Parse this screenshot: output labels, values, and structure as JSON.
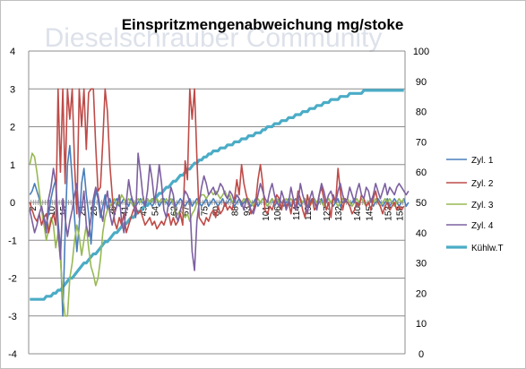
{
  "watermark": "Dieselschrauber Community",
  "chart_data": {
    "type": "line",
    "title": "Einspritzmengenabweichung mg/stoke",
    "y_left": {
      "min": -4,
      "max": 4,
      "step": 1,
      "ticks": [
        "4",
        "3",
        "2",
        "1",
        "0",
        "-1",
        "-2",
        "-3",
        "-4"
      ]
    },
    "y_right": {
      "min": 0,
      "max": 100,
      "step": 10,
      "ticks": [
        "100",
        "90",
        "80",
        "70",
        "60",
        "50",
        "40",
        "30",
        "20",
        "10",
        "0"
      ]
    },
    "x": {
      "count": 160,
      "tick_every": 6,
      "first_tick": 2,
      "ticks": [
        "2",
        "10",
        "15",
        "23",
        "28",
        "36",
        "41",
        "49",
        "54",
        "62",
        "67",
        "75",
        "80",
        "88",
        "93",
        "101",
        "106",
        "114",
        "119",
        "127",
        "132",
        "140",
        "145",
        "153",
        "158"
      ]
    },
    "legend_position": "right",
    "grid": "horizontal",
    "series": [
      {
        "name": "Zyl. 1",
        "color": "#4a7ebb",
        "axis": "left",
        "width": 1.6,
        "values": [
          0.2,
          0.3,
          0.5,
          0.3,
          0.1,
          -0.2,
          -0.4,
          -0.6,
          -0.3,
          0.1,
          0.4,
          0.6,
          -0.5,
          -1.2,
          -3.0,
          -0.8,
          1.0,
          1.5,
          0.6,
          -0.4,
          -1.3,
          -0.6,
          0.5,
          0.9,
          0.2,
          -0.3,
          -1.1,
          -0.2,
          0.3,
          0.1,
          -0.4,
          -0.1,
          0.2,
          -0.2,
          0.1,
          -0.1,
          0.0,
          0.1,
          -0.1,
          0.0,
          0.1,
          0.0,
          -0.1,
          0.1,
          0.0,
          -0.1,
          0.0,
          0.1,
          0.0,
          -0.1,
          0.1,
          0.0,
          -0.1,
          0.0,
          0.1,
          -0.1,
          0.0,
          0.1,
          0.0,
          -0.1,
          0.0,
          0.1,
          -0.1,
          0.0,
          0.1,
          0.0,
          -0.1,
          0.0,
          0.1,
          -0.1,
          0.0,
          0.1,
          0.0,
          -0.1,
          0.0,
          0.1,
          -0.1,
          0.0,
          0.1,
          0.0,
          -0.1,
          0.0,
          0.1,
          -0.1,
          0.0,
          0.1,
          0.0,
          -0.1,
          0.0,
          0.1,
          -0.1,
          0.0,
          0.1,
          0.0,
          -0.1,
          0.0,
          0.1,
          -0.1,
          0.0,
          0.1,
          0.0,
          -0.1,
          0.0,
          0.1,
          -0.1,
          0.0,
          0.1,
          0.0,
          -0.1,
          0.0,
          0.1,
          -0.1,
          0.0,
          0.1,
          0.0,
          -0.1,
          0.0,
          0.1,
          -0.1,
          0.0,
          0.1,
          0.0,
          -0.1,
          0.0,
          0.1,
          -0.1,
          0.0,
          0.1,
          0.0,
          -0.1,
          0.0,
          0.1,
          -0.1,
          0.0,
          0.1,
          0.0,
          -0.1,
          0.0,
          0.1,
          -0.1,
          0.0,
          0.1,
          0.0,
          -0.1,
          0.0,
          0.1,
          -0.1,
          0.0,
          0.1,
          0.0,
          -0.1,
          0.0,
          0.1,
          -0.1,
          0.0,
          0.1,
          0.0,
          -0.1,
          0.0,
          0.1,
          -0.1,
          0.0
        ]
      },
      {
        "name": "Zyl. 2",
        "color": "#be4b48",
        "axis": "left",
        "width": 1.6,
        "values": [
          0.0,
          -0.2,
          -0.4,
          -0.5,
          -0.3,
          -0.6,
          -0.4,
          -0.3,
          -0.8,
          -0.5,
          -0.3,
          -0.6,
          3.0,
          0.8,
          3.0,
          0.5,
          3.0,
          2.2,
          3.0,
          1.0,
          -0.3,
          3.0,
          2.0,
          3.0,
          1.4,
          2.9,
          3.0,
          3.0,
          1.5,
          0.3,
          0.4,
          1.6,
          3.0,
          2.4,
          1.0,
          0.2,
          -0.5,
          -0.7,
          -0.4,
          -0.6,
          -0.3,
          -0.8,
          -0.6,
          -0.4,
          -0.2,
          -0.1,
          -0.3,
          -0.2,
          -0.4,
          -0.6,
          -0.5,
          -0.4,
          -0.6,
          -0.5,
          -0.7,
          -0.6,
          -0.5,
          -0.6,
          -0.4,
          -0.3,
          -0.6,
          -0.4,
          -0.6,
          -0.5,
          -0.3,
          -0.6,
          1.1,
          0.6,
          3.0,
          2.2,
          3.0,
          1.2,
          -0.4,
          -0.5,
          -0.6,
          -0.4,
          -0.5,
          -0.3,
          -0.2,
          -0.4,
          -0.1,
          -0.3,
          -0.2,
          0.0,
          -0.2,
          -0.1,
          -0.2,
          0.1,
          0.6,
          0.2,
          1.0,
          0.5,
          0.2,
          0.0,
          -0.3,
          -0.2,
          0.0,
          0.6,
          1.0,
          0.5,
          -0.2,
          -0.3,
          -0.1,
          -0.2,
          0.0,
          0.2,
          0.1,
          -0.2,
          0.1,
          -0.1,
          0.0,
          -0.3,
          0.1,
          -0.2,
          0.3,
          0.1,
          -0.2,
          -0.4,
          0.2,
          -0.1,
          0.1,
          -0.2,
          -0.1,
          0.2,
          0.4,
          0.1,
          -0.2,
          0.0,
          -0.4,
          0.2,
          0.0,
          0.9,
          0.3,
          -0.2,
          0.1,
          0.0,
          -0.1,
          -0.3,
          -0.2,
          0.0,
          -0.1,
          0.2,
          0.1,
          -0.1,
          0.0,
          -0.2,
          0.1,
          0.3,
          0.0,
          -0.1,
          -0.3,
          -0.1,
          0.0,
          -0.2,
          -0.1,
          0.0,
          -0.2,
          -0.1,
          -0.2,
          -0.1
        ]
      },
      {
        "name": "Zyl. 3",
        "color": "#98b954",
        "axis": "left",
        "width": 1.6,
        "values": [
          1.0,
          1.3,
          1.2,
          0.8,
          0.3,
          -0.2,
          -0.6,
          -1.0,
          -0.7,
          -0.4,
          -0.6,
          -1.2,
          -0.8,
          -1.5,
          -2.5,
          -3.0,
          -3.0,
          -2.0,
          -1.6,
          -1.0,
          -0.6,
          -0.9,
          -1.4,
          -1.0,
          -0.6,
          -1.2,
          -1.7,
          -1.9,
          -2.2,
          -2.0,
          -1.5,
          -0.8,
          -0.4,
          -0.2,
          -0.1,
          0.0,
          0.1,
          -0.1,
          0.0,
          0.2,
          0.1,
          0.0,
          0.1,
          0.0,
          -0.1,
          0.0,
          0.1,
          0.0,
          0.1,
          0.0,
          0.1,
          0.0,
          0.1,
          0.0,
          0.1,
          0.0,
          0.1,
          0.0,
          0.1,
          0.0,
          0.1,
          0.0,
          -0.4,
          -0.3,
          -0.2,
          -0.3,
          -0.4,
          -0.3,
          -0.5,
          -0.3,
          -0.2,
          0.0,
          0.1,
          0.2,
          0.2,
          0.1,
          0.2,
          0.3,
          0.2,
          0.3,
          0.2,
          0.1,
          0.2,
          0.3,
          0.1,
          0.2,
          0.0,
          0.1,
          0.2,
          0.1,
          0.0,
          0.1,
          0.0,
          0.1,
          0.0,
          -0.1,
          0.0,
          0.1,
          0.0,
          0.1,
          0.0,
          -0.1,
          0.0,
          0.1,
          0.0,
          0.1,
          0.0,
          -0.1,
          0.0,
          0.1,
          0.0,
          0.1,
          0.0,
          -0.1,
          0.0,
          0.1,
          0.0,
          0.1,
          0.0,
          -0.1,
          0.0,
          0.1,
          0.0,
          0.1,
          0.0,
          -0.1,
          0.0,
          0.1,
          0.0,
          0.1,
          0.0,
          -0.1,
          0.0,
          0.1,
          0.0,
          0.1,
          0.0,
          -0.1,
          0.0,
          0.1,
          0.0,
          0.1,
          0.0,
          -0.1,
          0.0,
          0.1,
          0.0,
          0.1,
          0.0,
          -0.1,
          0.0,
          0.1,
          0.0,
          0.1,
          0.0,
          -0.1,
          0.0,
          0.1,
          0.0,
          0.1
        ]
      },
      {
        "name": "Zyl. 4",
        "color": "#7d60a0",
        "axis": "left",
        "width": 1.6,
        "values": [
          -0.2,
          -0.5,
          -0.8,
          -0.6,
          -0.3,
          -0.1,
          -0.4,
          -0.8,
          0.1,
          0.4,
          0.9,
          0.5,
          -0.8,
          -1.5,
          0.1,
          -0.4,
          -0.9,
          -0.5,
          -0.2,
          0.2,
          0.5,
          -0.4,
          -0.2,
          0.3,
          -0.6,
          -0.9,
          -0.4,
          0.1,
          0.4,
          0.2,
          -0.2,
          -0.5,
          0.0,
          0.3,
          -0.3,
          -0.6,
          -0.3,
          -0.1,
          0.2,
          -0.5,
          -0.8,
          0.0,
          0.6,
          0.2,
          0.0,
          -0.4,
          1.3,
          0.8,
          0.2,
          -0.1,
          0.3,
          1.0,
          0.6,
          0.0,
          0.4,
          1.0,
          0.5,
          -0.2,
          -0.4,
          0.0,
          0.4,
          0.2,
          -0.3,
          -0.5,
          -0.2,
          0.0,
          0.3,
          0.2,
          0.0,
          -1.3,
          -1.8,
          -0.5,
          0.0,
          0.4,
          0.7,
          0.5,
          0.2,
          0.3,
          0.4,
          0.2,
          0.3,
          0.5,
          0.4,
          0.2,
          0.1,
          0.3,
          0.2,
          0.0,
          0.2,
          0.1,
          0.0,
          -0.2,
          0.1,
          0.0,
          -0.2,
          -0.3,
          -0.1,
          0.2,
          0.5,
          0.3,
          0.1,
          0.0,
          0.3,
          0.5,
          0.2,
          0.0,
          -0.1,
          0.3,
          0.1,
          -0.2,
          0.0,
          0.4,
          0.1,
          -0.2,
          0.0,
          0.5,
          0.2,
          0.0,
          -0.3,
          0.1,
          0.3,
          0.0,
          -0.2,
          0.2,
          0.5,
          0.3,
          0.0,
          0.2,
          0.3,
          0.1,
          0.0,
          0.3,
          0.5,
          0.2,
          0.0,
          0.1,
          0.4,
          0.2,
          0.0,
          0.3,
          0.5,
          0.2,
          0.1,
          0.4,
          0.3,
          0.0,
          0.2,
          0.5,
          0.3,
          0.1,
          0.3,
          0.5,
          0.2,
          0.4,
          0.3,
          0.2,
          0.4,
          0.5,
          0.4,
          0.3,
          0.2,
          0.3
        ]
      },
      {
        "name": "Kühlw.T",
        "color": "#4bacc6",
        "axis": "right",
        "width": 3.2,
        "values": [
          18,
          18,
          18,
          18,
          18,
          18,
          18,
          19,
          19,
          19,
          20,
          20,
          21,
          21,
          22,
          23,
          24,
          25,
          25,
          26,
          27,
          28,
          29,
          30,
          30,
          31,
          32,
          33,
          33,
          34,
          35,
          36,
          37,
          37,
          38,
          39,
          40,
          40,
          41,
          42,
          43,
          43,
          44,
          45,
          45,
          46,
          47,
          47,
          48,
          49,
          49,
          50,
          51,
          51,
          52,
          53,
          53,
          54,
          55,
          55,
          56,
          57,
          57,
          58,
          59,
          59,
          60,
          61,
          61,
          62,
          63,
          63,
          64,
          64,
          65,
          65,
          66,
          66,
          67,
          67,
          67,
          68,
          68,
          68,
          69,
          69,
          69,
          70,
          70,
          70,
          71,
          71,
          71,
          72,
          72,
          72,
          73,
          73,
          73,
          74,
          74,
          75,
          75,
          75,
          76,
          76,
          76,
          77,
          77,
          77,
          78,
          78,
          78,
          79,
          79,
          79,
          80,
          80,
          80,
          81,
          81,
          81,
          82,
          82,
          82,
          83,
          83,
          83,
          84,
          84,
          84,
          84,
          85,
          85,
          85,
          85,
          86,
          86,
          86,
          86,
          86,
          86,
          87,
          87,
          87,
          87,
          87,
          87,
          87,
          87,
          87,
          87,
          87,
          87,
          87,
          87,
          87,
          87,
          87,
          87
        ]
      }
    ]
  }
}
